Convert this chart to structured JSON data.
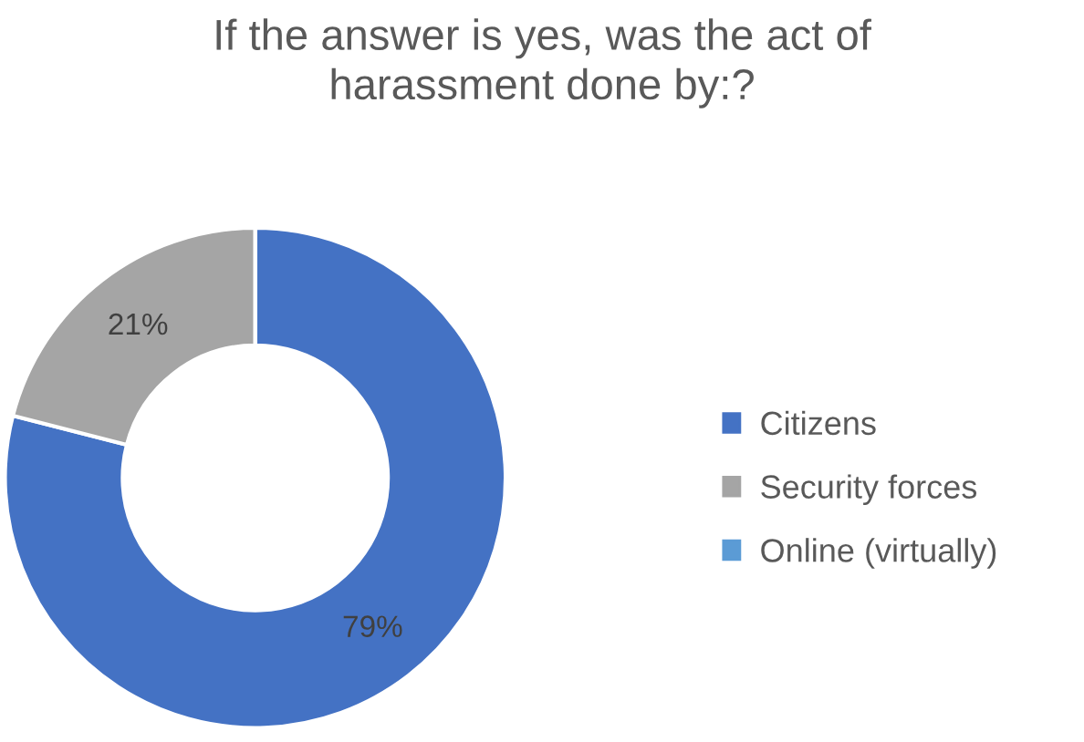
{
  "chart_data": {
    "type": "donut",
    "title": "If the answer is yes, was the act of\nharassment done by:?",
    "categories": [
      "Citizens",
      "Security forces",
      "Online (virtually)"
    ],
    "values": [
      79,
      21,
      0
    ],
    "colors": [
      "#4472c4",
      "#a5a5a5",
      "#5b9bd5"
    ],
    "value_labels": [
      "79%",
      "21%",
      null
    ],
    "legend": "right"
  }
}
